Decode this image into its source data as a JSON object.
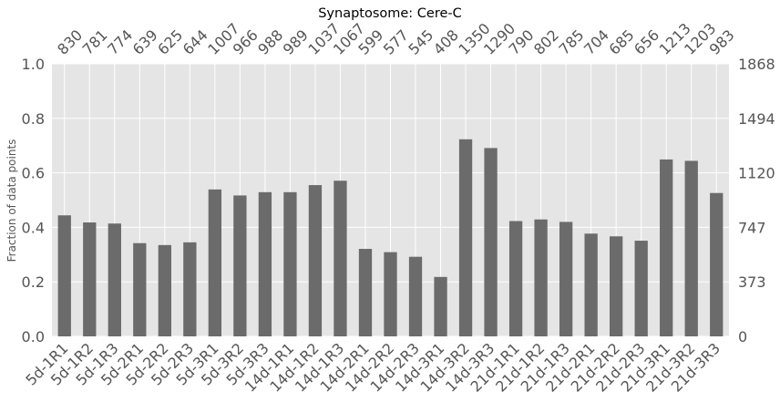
{
  "chart_data": {
    "type": "bar",
    "title": "Synaptosome: Cere-C",
    "ylabel": "Fraction of data points",
    "ylim": [
      0,
      1.0
    ],
    "yticks": [
      "0.0",
      "0.2",
      "0.4",
      "0.6",
      "0.8",
      "1.0"
    ],
    "right_ticks": [
      "0",
      "373",
      "747",
      "1120",
      "1494",
      "1868"
    ],
    "categories": [
      "5d-1R1",
      "5d-1R2",
      "5d-1R3",
      "5d-2R1",
      "5d-2R2",
      "5d-2R3",
      "5d-3R1",
      "5d-3R2",
      "5d-3R3",
      "14d-1R1",
      "14d-1R2",
      "14d-1R3",
      "14d-2R1",
      "14d-2R2",
      "14d-2R3",
      "14d-3R1",
      "14d-3R2",
      "14d-3R3",
      "21d-1R1",
      "21d-1R2",
      "21d-1R3",
      "21d-2R1",
      "21d-2R2",
      "21d-2R3",
      "21d-3R1",
      "21d-3R2",
      "21d-3R3"
    ],
    "counts": [
      "830",
      "781",
      "774",
      "639",
      "625",
      "644",
      "1007",
      "966",
      "988",
      "989",
      "1037",
      "1067",
      "599",
      "577",
      "545",
      "408",
      "1350",
      "1290",
      "790",
      "802",
      "785",
      "704",
      "685",
      "656",
      "1213",
      "1203",
      "983"
    ],
    "values": [
      0.444,
      0.418,
      0.414,
      0.342,
      0.335,
      0.345,
      0.539,
      0.517,
      0.529,
      0.529,
      0.555,
      0.571,
      0.321,
      0.309,
      0.292,
      0.218,
      0.723,
      0.691,
      0.423,
      0.429,
      0.42,
      0.377,
      0.367,
      0.351,
      0.649,
      0.644,
      0.526
    ],
    "colors": {
      "bar": "#6b6b6b",
      "plot_bg": "#e5e5e5",
      "grid": "#ffffff"
    },
    "grid": true
  }
}
